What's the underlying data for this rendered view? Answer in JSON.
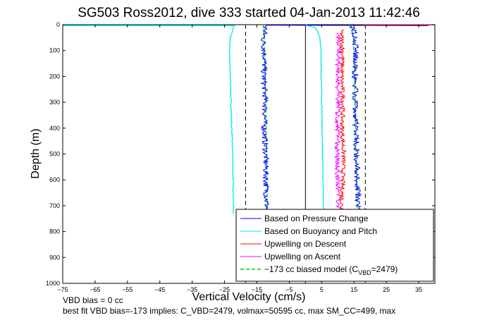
{
  "chart_data": {
    "type": "line",
    "title": "SG503 Ross2012, dive 333 started 04-Jan-2013 11:42:46",
    "xlabel": "Vertical Velocity (cm/s)",
    "ylabel": "Depth (m)",
    "xlim": [
      -75,
      40
    ],
    "ylim": [
      1000,
      0
    ],
    "x_ticks": [
      -75,
      -65,
      -55,
      -45,
      -35,
      -25,
      -15,
      -5,
      5,
      15,
      25,
      35
    ],
    "y_ticks": [
      0,
      100,
      200,
      300,
      400,
      500,
      600,
      700,
      800,
      900,
      1000
    ],
    "legend_position": "bottom-right",
    "legend": {
      "pressure": "Based on Pressure Change",
      "buoyancy": "Based on Buoyancy and Pitch",
      "descent": "Upwelling on Descent",
      "ascent": "Upwelling on Ascent",
      "model_pre": "−173 cc biased model (C",
      "model_sub": "VBD",
      "model_post": "=2479)"
    },
    "colors": {
      "pressure": "#0000ff",
      "buoyancy": "#00e5e5",
      "descent": "#ff0000",
      "ascent": "#ff00ff",
      "model": "#00cc00",
      "ref": "#000000"
    },
    "series": [
      {
        "name": "Based on Pressure Change",
        "key": "pressure_desc",
        "points": [
          [
            -12,
            2
          ],
          [
            -12.5,
            20
          ],
          [
            -13,
            60
          ],
          [
            -12.6,
            120
          ],
          [
            -12.9,
            200
          ],
          [
            -12.4,
            300
          ],
          [
            -12.7,
            400
          ],
          [
            -12.3,
            500
          ],
          [
            -12.2,
            600
          ],
          [
            -12,
            700
          ],
          [
            -11.9,
            730
          ]
        ]
      },
      {
        "name": "Based on Pressure Change",
        "key": "pressure_asc",
        "points": [
          [
            16.5,
            730
          ],
          [
            16.3,
            700
          ],
          [
            16.1,
            600
          ],
          [
            15.8,
            500
          ],
          [
            15.6,
            400
          ],
          [
            15.5,
            300
          ],
          [
            15.3,
            200
          ],
          [
            15.6,
            100
          ],
          [
            15.2,
            40
          ],
          [
            15,
            20
          ],
          [
            14,
            5
          ]
        ]
      },
      {
        "name": "Based on Buoyancy and Pitch",
        "key": "buoyancy_desc",
        "points": [
          [
            -22,
            2
          ],
          [
            -23,
            40
          ],
          [
            -23.5,
            80
          ],
          [
            -23.2,
            200
          ],
          [
            -22.9,
            350
          ],
          [
            -22.5,
            500
          ],
          [
            -22.3,
            650
          ],
          [
            -22.2,
            730
          ]
        ]
      },
      {
        "name": "Based on Buoyancy and Pitch",
        "key": "buoyancy_asc",
        "points": [
          [
            6.5,
            730
          ],
          [
            5.5,
            700
          ],
          [
            5.3,
            500
          ],
          [
            5.0,
            300
          ],
          [
            4.8,
            100
          ],
          [
            4.3,
            40
          ],
          [
            3,
            12
          ],
          [
            1,
            4
          ],
          [
            0,
            0
          ]
        ]
      },
      {
        "name": "Upwelling on Descent",
        "key": "descent",
        "points": [
          [
            11,
            20
          ],
          [
            11.5,
            100
          ],
          [
            11.2,
            200
          ],
          [
            11.6,
            300
          ],
          [
            11.3,
            400
          ],
          [
            11.8,
            500
          ],
          [
            11.5,
            600
          ],
          [
            11.2,
            700
          ],
          [
            11.5,
            730
          ]
        ]
      },
      {
        "name": "Upwelling on Ascent",
        "key": "ascent",
        "points": [
          [
            10.5,
            730
          ],
          [
            10.2,
            700
          ],
          [
            10,
            600
          ],
          [
            9.8,
            500
          ],
          [
            9.9,
            400
          ],
          [
            10.1,
            300
          ],
          [
            10,
            200
          ],
          [
            10.3,
            100
          ],
          [
            10,
            30
          ]
        ]
      },
      {
        "name": "−173 cc biased model (CVBD=2479)",
        "key": "model_desc",
        "points": [
          [
            -13,
            0
          ],
          [
            -12.6,
            100
          ],
          [
            -12.3,
            300
          ],
          [
            -12,
            500
          ],
          [
            -11.8,
            700
          ],
          [
            -11.8,
            730
          ]
        ]
      },
      {
        "name": "−173 cc biased model (CVBD=2479)",
        "key": "model_asc",
        "points": [
          [
            16,
            730
          ],
          [
            15.8,
            600
          ],
          [
            15.5,
            400
          ],
          [
            15.2,
            200
          ],
          [
            14.8,
            50
          ],
          [
            14,
            0
          ]
        ]
      }
    ],
    "reference_lines": [
      {
        "x": 0,
        "style": "solid"
      },
      {
        "x": -18.5,
        "style": "dashed"
      },
      {
        "x": 18.5,
        "style": "dashed"
      }
    ]
  },
  "notes": {
    "line1": "VBD bias = 0 cc",
    "line2": "best fit VBD bias=-173 implies: C_VBD=2479, volmax=50595 cc, max SM_CC=499, max"
  }
}
